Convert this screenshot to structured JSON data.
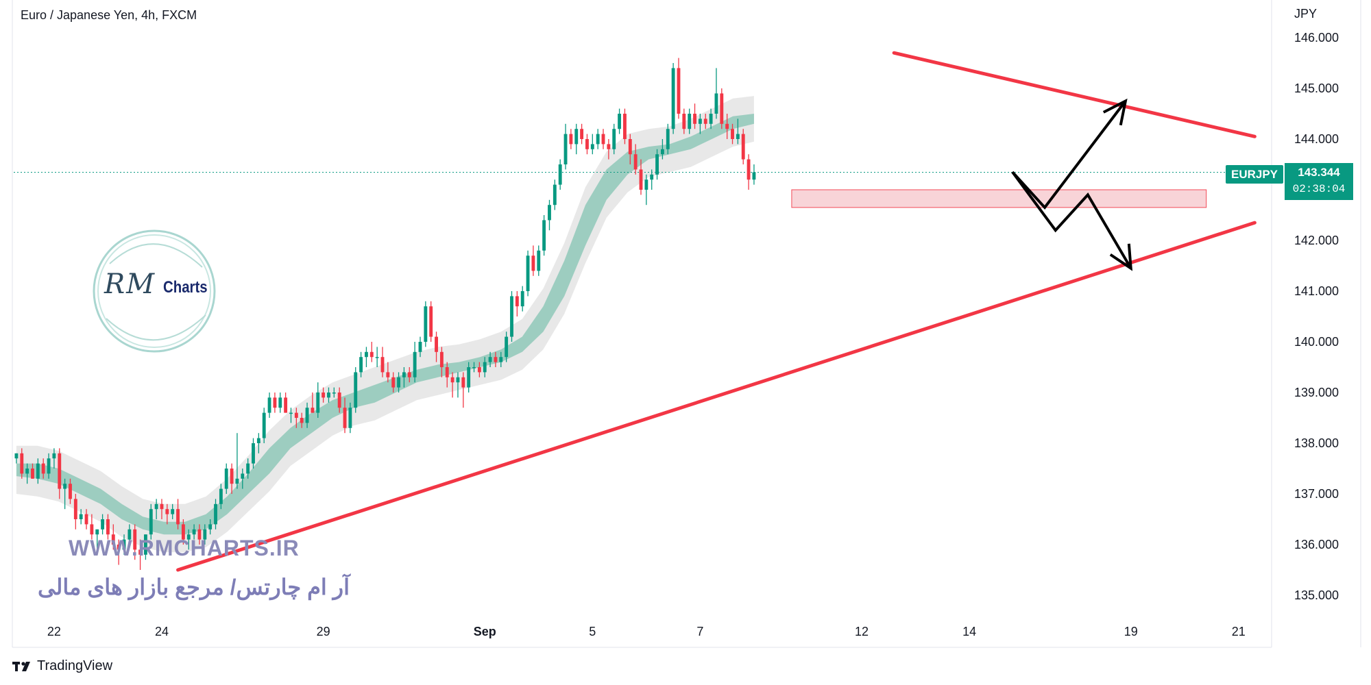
{
  "header": {
    "title": "Euro / Japanese Yen, 4h, FXCM"
  },
  "price_axis": {
    "currency": "JPY"
  },
  "symbol_tag": {
    "symbol": "EURJPY",
    "price": "143.344",
    "countdown": "02:38:04"
  },
  "watermark": {
    "logo_rm": "RM",
    "logo_charts": "Charts",
    "url": "WWW.RMCHARTS.IR",
    "persian": "آر ام چارتس/ مرجع بازار های مالی"
  },
  "footer": {
    "brand": "TradingView"
  },
  "colors": {
    "up": "#089981",
    "down": "#f23645",
    "trendline": "#f23645",
    "zone_fill": "#f8d0d4",
    "arrows": "#000000",
    "band_grey": "#d6d6d6",
    "band_green": "#84c4b3",
    "band_red": "#e8a0a5"
  },
  "chart_data": {
    "type": "candlestick",
    "title": "Euro / Japanese Yen, 4h, FXCM",
    "ylabel": "JPY",
    "ylim": [
      134.3,
      146.5
    ],
    "y_ticks": [
      146,
      145,
      144,
      143,
      142,
      141,
      140,
      139,
      138,
      137,
      136,
      135
    ],
    "y_tick_labels": [
      "146.000",
      "145.000",
      "144.000",
      "143.000",
      "142.000",
      "141.000",
      "140.000",
      "139.000",
      "138.000",
      "137.000",
      "136.000",
      "135.000"
    ],
    "x_ticks": [
      {
        "label": "22",
        "bar": 7
      },
      {
        "label": "24",
        "bar": 27
      },
      {
        "label": "29",
        "bar": 57
      },
      {
        "label": "Sep",
        "bar": 87
      },
      {
        "label": "5",
        "bar": 107
      },
      {
        "label": "7",
        "bar": 127
      },
      {
        "label": "12",
        "bar": 157
      },
      {
        "label": "14",
        "bar": 177
      },
      {
        "label": "19",
        "bar": 207
      },
      {
        "label": "21",
        "bar": 227
      }
    ],
    "bars_total": 233,
    "last_price": 143.344,
    "candles": [
      [
        137.7,
        137.8,
        137.6,
        137.8
      ],
      [
        137.8,
        137.9,
        137.3,
        137.4
      ],
      [
        137.4,
        137.6,
        137.2,
        137.5
      ],
      [
        137.5,
        137.6,
        137.3,
        137.3
      ],
      [
        137.3,
        137.7,
        137.2,
        137.6
      ],
      [
        137.6,
        137.7,
        137.3,
        137.4
      ],
      [
        137.4,
        137.8,
        137.3,
        137.7
      ],
      [
        137.7,
        137.9,
        137.5,
        137.8
      ],
      [
        137.8,
        137.9,
        136.9,
        137.1
      ],
      [
        137.1,
        137.3,
        136.7,
        137.2
      ],
      [
        137.2,
        137.3,
        136.8,
        136.9
      ],
      [
        136.9,
        137.0,
        136.3,
        136.5
      ],
      [
        136.5,
        136.7,
        136.4,
        136.6
      ],
      [
        136.6,
        136.7,
        136.3,
        136.4
      ],
      [
        136.4,
        136.6,
        136.1,
        136.2
      ],
      [
        136.2,
        136.3,
        135.8,
        136.3
      ],
      [
        136.3,
        136.6,
        136.2,
        136.5
      ],
      [
        136.5,
        136.6,
        136.1,
        136.2
      ],
      [
        136.2,
        136.4,
        135.9,
        136.0
      ],
      [
        136.0,
        136.1,
        135.6,
        135.9
      ],
      [
        135.9,
        136.2,
        135.8,
        136.1
      ],
      [
        136.1,
        136.4,
        136.0,
        136.3
      ],
      [
        136.3,
        136.4,
        135.7,
        135.9
      ],
      [
        135.9,
        136.1,
        135.5,
        135.8
      ],
      [
        135.8,
        136.2,
        135.7,
        136.2
      ],
      [
        136.2,
        136.8,
        136.1,
        136.7
      ],
      [
        136.7,
        136.9,
        136.5,
        136.8
      ],
      [
        136.8,
        136.9,
        136.5,
        136.7
      ],
      [
        136.7,
        136.8,
        136.4,
        136.6
      ],
      [
        136.6,
        136.8,
        136.5,
        136.7
      ],
      [
        136.7,
        136.9,
        136.3,
        136.4
      ],
      [
        136.4,
        136.5,
        136.0,
        136.1
      ],
      [
        136.1,
        136.3,
        135.9,
        136.2
      ],
      [
        136.2,
        136.4,
        136.1,
        136.3
      ],
      [
        136.3,
        136.4,
        136.0,
        136.1
      ],
      [
        136.1,
        136.4,
        136.0,
        136.3
      ],
      [
        136.3,
        136.5,
        136.2,
        136.4
      ],
      [
        136.4,
        136.9,
        136.3,
        136.8
      ],
      [
        136.8,
        137.2,
        136.7,
        137.1
      ],
      [
        137.1,
        137.6,
        137.0,
        137.5
      ],
      [
        137.5,
        137.6,
        137.0,
        137.2
      ],
      [
        137.2,
        138.2,
        137.1,
        137.3
      ],
      [
        137.3,
        137.5,
        137.1,
        137.4
      ],
      [
        137.4,
        137.7,
        137.3,
        137.6
      ],
      [
        137.6,
        138.1,
        137.5,
        138.0
      ],
      [
        138.0,
        138.2,
        137.8,
        138.1
      ],
      [
        138.1,
        138.7,
        138.0,
        138.6
      ],
      [
        138.6,
        139.0,
        138.5,
        138.9
      ],
      [
        138.9,
        139.0,
        138.6,
        138.7
      ],
      [
        138.7,
        139.0,
        138.6,
        138.9
      ],
      [
        138.9,
        139.0,
        138.6,
        138.6
      ],
      [
        138.6,
        138.7,
        138.4,
        138.6
      ],
      [
        138.6,
        138.7,
        138.3,
        138.5
      ],
      [
        138.5,
        138.6,
        138.3,
        138.4
      ],
      [
        138.4,
        138.8,
        138.3,
        138.7
      ],
      [
        138.7,
        139.0,
        138.6,
        138.6
      ],
      [
        138.6,
        139.2,
        138.5,
        139.0
      ],
      [
        139.0,
        139.1,
        138.8,
        138.9
      ],
      [
        138.9,
        139.1,
        138.8,
        139.0
      ],
      [
        139.0,
        139.1,
        138.9,
        139.0
      ],
      [
        139.0,
        139.1,
        138.6,
        138.7
      ],
      [
        138.7,
        138.9,
        138.2,
        138.3
      ],
      [
        138.3,
        138.8,
        138.2,
        138.7
      ],
      [
        138.7,
        139.5,
        138.6,
        139.4
      ],
      [
        139.4,
        139.8,
        139.3,
        139.7
      ],
      [
        139.7,
        139.9,
        139.5,
        139.8
      ],
      [
        139.8,
        140.0,
        139.6,
        139.7
      ],
      [
        139.7,
        139.9,
        139.5,
        139.7
      ],
      [
        139.7,
        139.9,
        139.3,
        139.4
      ],
      [
        139.4,
        139.6,
        139.2,
        139.3
      ],
      [
        139.3,
        139.4,
        139.0,
        139.1
      ],
      [
        139.1,
        139.4,
        139.0,
        139.3
      ],
      [
        139.3,
        139.5,
        139.1,
        139.4
      ],
      [
        139.4,
        139.5,
        139.2,
        139.3
      ],
      [
        139.3,
        140.0,
        139.2,
        139.8
      ],
      [
        139.8,
        140.1,
        139.7,
        140.0
      ],
      [
        140.0,
        140.8,
        139.9,
        140.7
      ],
      [
        140.7,
        140.8,
        140.0,
        140.1
      ],
      [
        140.1,
        140.2,
        139.6,
        139.8
      ],
      [
        139.8,
        139.9,
        139.3,
        139.5
      ],
      [
        139.5,
        139.6,
        139.1,
        139.3
      ],
      [
        139.3,
        139.4,
        138.9,
        139.2
      ],
      [
        139.2,
        139.4,
        138.9,
        139.3
      ],
      [
        139.3,
        139.4,
        138.7,
        139.1
      ],
      [
        139.1,
        139.6,
        139.0,
        139.5
      ],
      [
        139.5,
        139.6,
        139.4,
        139.5
      ],
      [
        139.5,
        139.6,
        139.3,
        139.4
      ],
      [
        139.4,
        139.7,
        139.3,
        139.6
      ],
      [
        139.6,
        139.8,
        139.5,
        139.7
      ],
      [
        139.7,
        139.8,
        139.5,
        139.6
      ],
      [
        139.6,
        139.8,
        139.5,
        139.7
      ],
      [
        139.7,
        140.2,
        139.6,
        140.1
      ],
      [
        140.1,
        141.0,
        140.0,
        140.9
      ],
      [
        140.9,
        141.0,
        140.5,
        140.7
      ],
      [
        140.7,
        141.1,
        140.6,
        141.0
      ],
      [
        141.0,
        141.8,
        140.9,
        141.7
      ],
      [
        141.7,
        141.9,
        141.3,
        141.4
      ],
      [
        141.4,
        141.9,
        141.3,
        141.8
      ],
      [
        141.8,
        142.5,
        141.7,
        142.4
      ],
      [
        142.4,
        142.8,
        142.2,
        142.7
      ],
      [
        142.7,
        143.2,
        142.6,
        143.1
      ],
      [
        143.1,
        143.6,
        143.0,
        143.5
      ],
      [
        143.5,
        144.3,
        143.4,
        144.1
      ],
      [
        144.1,
        144.2,
        143.8,
        143.9
      ],
      [
        143.9,
        144.3,
        143.7,
        144.2
      ],
      [
        144.2,
        144.3,
        143.9,
        144.0
      ],
      [
        144.0,
        144.1,
        143.7,
        143.8
      ],
      [
        143.8,
        144.1,
        143.7,
        143.9
      ],
      [
        143.9,
        144.2,
        143.8,
        144.1
      ],
      [
        144.1,
        144.2,
        143.8,
        143.9
      ],
      [
        143.9,
        144.0,
        143.6,
        143.8
      ],
      [
        143.8,
        144.3,
        143.7,
        144.2
      ],
      [
        144.2,
        144.6,
        144.1,
        144.5
      ],
      [
        144.5,
        144.6,
        143.9,
        144.0
      ],
      [
        144.0,
        144.1,
        143.5,
        143.7
      ],
      [
        143.7,
        143.9,
        143.3,
        143.4
      ],
      [
        143.4,
        143.6,
        142.9,
        143.0
      ],
      [
        143.0,
        143.3,
        142.7,
        143.2
      ],
      [
        143.2,
        143.4,
        143.0,
        143.3
      ],
      [
        143.3,
        143.8,
        143.2,
        143.7
      ],
      [
        143.7,
        144.0,
        143.6,
        143.8
      ],
      [
        143.8,
        144.3,
        143.7,
        144.2
      ],
      [
        144.2,
        145.5,
        144.1,
        145.4
      ],
      [
        145.4,
        145.6,
        144.4,
        144.5
      ],
      [
        144.5,
        144.6,
        144.1,
        144.2
      ],
      [
        144.2,
        144.6,
        144.1,
        144.5
      ],
      [
        144.5,
        144.7,
        144.2,
        144.3
      ],
      [
        144.3,
        144.5,
        144.1,
        144.4
      ],
      [
        144.4,
        144.5,
        144.2,
        144.3
      ],
      [
        144.3,
        144.6,
        144.2,
        144.5
      ],
      [
        144.5,
        145.4,
        144.4,
        144.9
      ],
      [
        144.9,
        145.0,
        144.2,
        144.3
      ],
      [
        144.3,
        144.5,
        144.0,
        144.2
      ],
      [
        144.2,
        144.3,
        143.9,
        144.0
      ],
      [
        144.0,
        144.4,
        143.9,
        144.1
      ],
      [
        144.1,
        144.2,
        143.5,
        143.6
      ],
      [
        143.6,
        143.7,
        143.0,
        143.2
      ],
      [
        143.2,
        143.5,
        143.1,
        143.344
      ]
    ],
    "ema_band_lower": [
      137.35,
      137.3,
      137.2,
      137.0,
      136.8,
      136.5,
      136.3,
      136.2,
      136.2,
      136.3,
      136.6,
      137.0,
      137.4,
      137.9,
      138.2,
      138.5,
      138.7,
      138.8,
      139.0,
      139.2,
      139.3,
      139.4,
      139.5,
      139.6,
      139.8,
      140.2,
      140.9,
      141.9,
      142.8,
      143.3,
      143.6,
      143.7,
      143.8,
      144.0,
      144.2,
      144.3
    ],
    "ema_band_upper": [
      137.6,
      137.6,
      137.5,
      137.3,
      137.1,
      136.8,
      136.55,
      136.45,
      136.45,
      136.6,
      136.95,
      137.4,
      137.9,
      138.3,
      138.6,
      138.85,
      139.0,
      139.15,
      139.3,
      139.45,
      139.55,
      139.6,
      139.7,
      139.85,
      140.1,
      140.7,
      141.6,
      142.7,
      143.4,
      143.75,
      143.85,
      143.9,
      144.05,
      144.25,
      144.45,
      144.5
    ],
    "annotations": {
      "resistance_line": {
        "from": [
          163,
          145.7
        ],
        "to": [
          230,
          144.05
        ]
      },
      "support_line": {
        "from": [
          30,
          135.5
        ],
        "to": [
          230,
          142.35
        ]
      },
      "demand_zone": {
        "bar_start": 144,
        "bar_end": 221,
        "price_low": 142.65,
        "price_high": 143.0
      },
      "scenario_up": [
        [
          185,
          143.35
        ],
        [
          191,
          142.65
        ],
        [
          206,
          144.75
        ]
      ],
      "scenario_down": [
        [
          185,
          143.35
        ],
        [
          193,
          142.2
        ],
        [
          199,
          142.9
        ],
        [
          207,
          141.45
        ]
      ]
    }
  }
}
